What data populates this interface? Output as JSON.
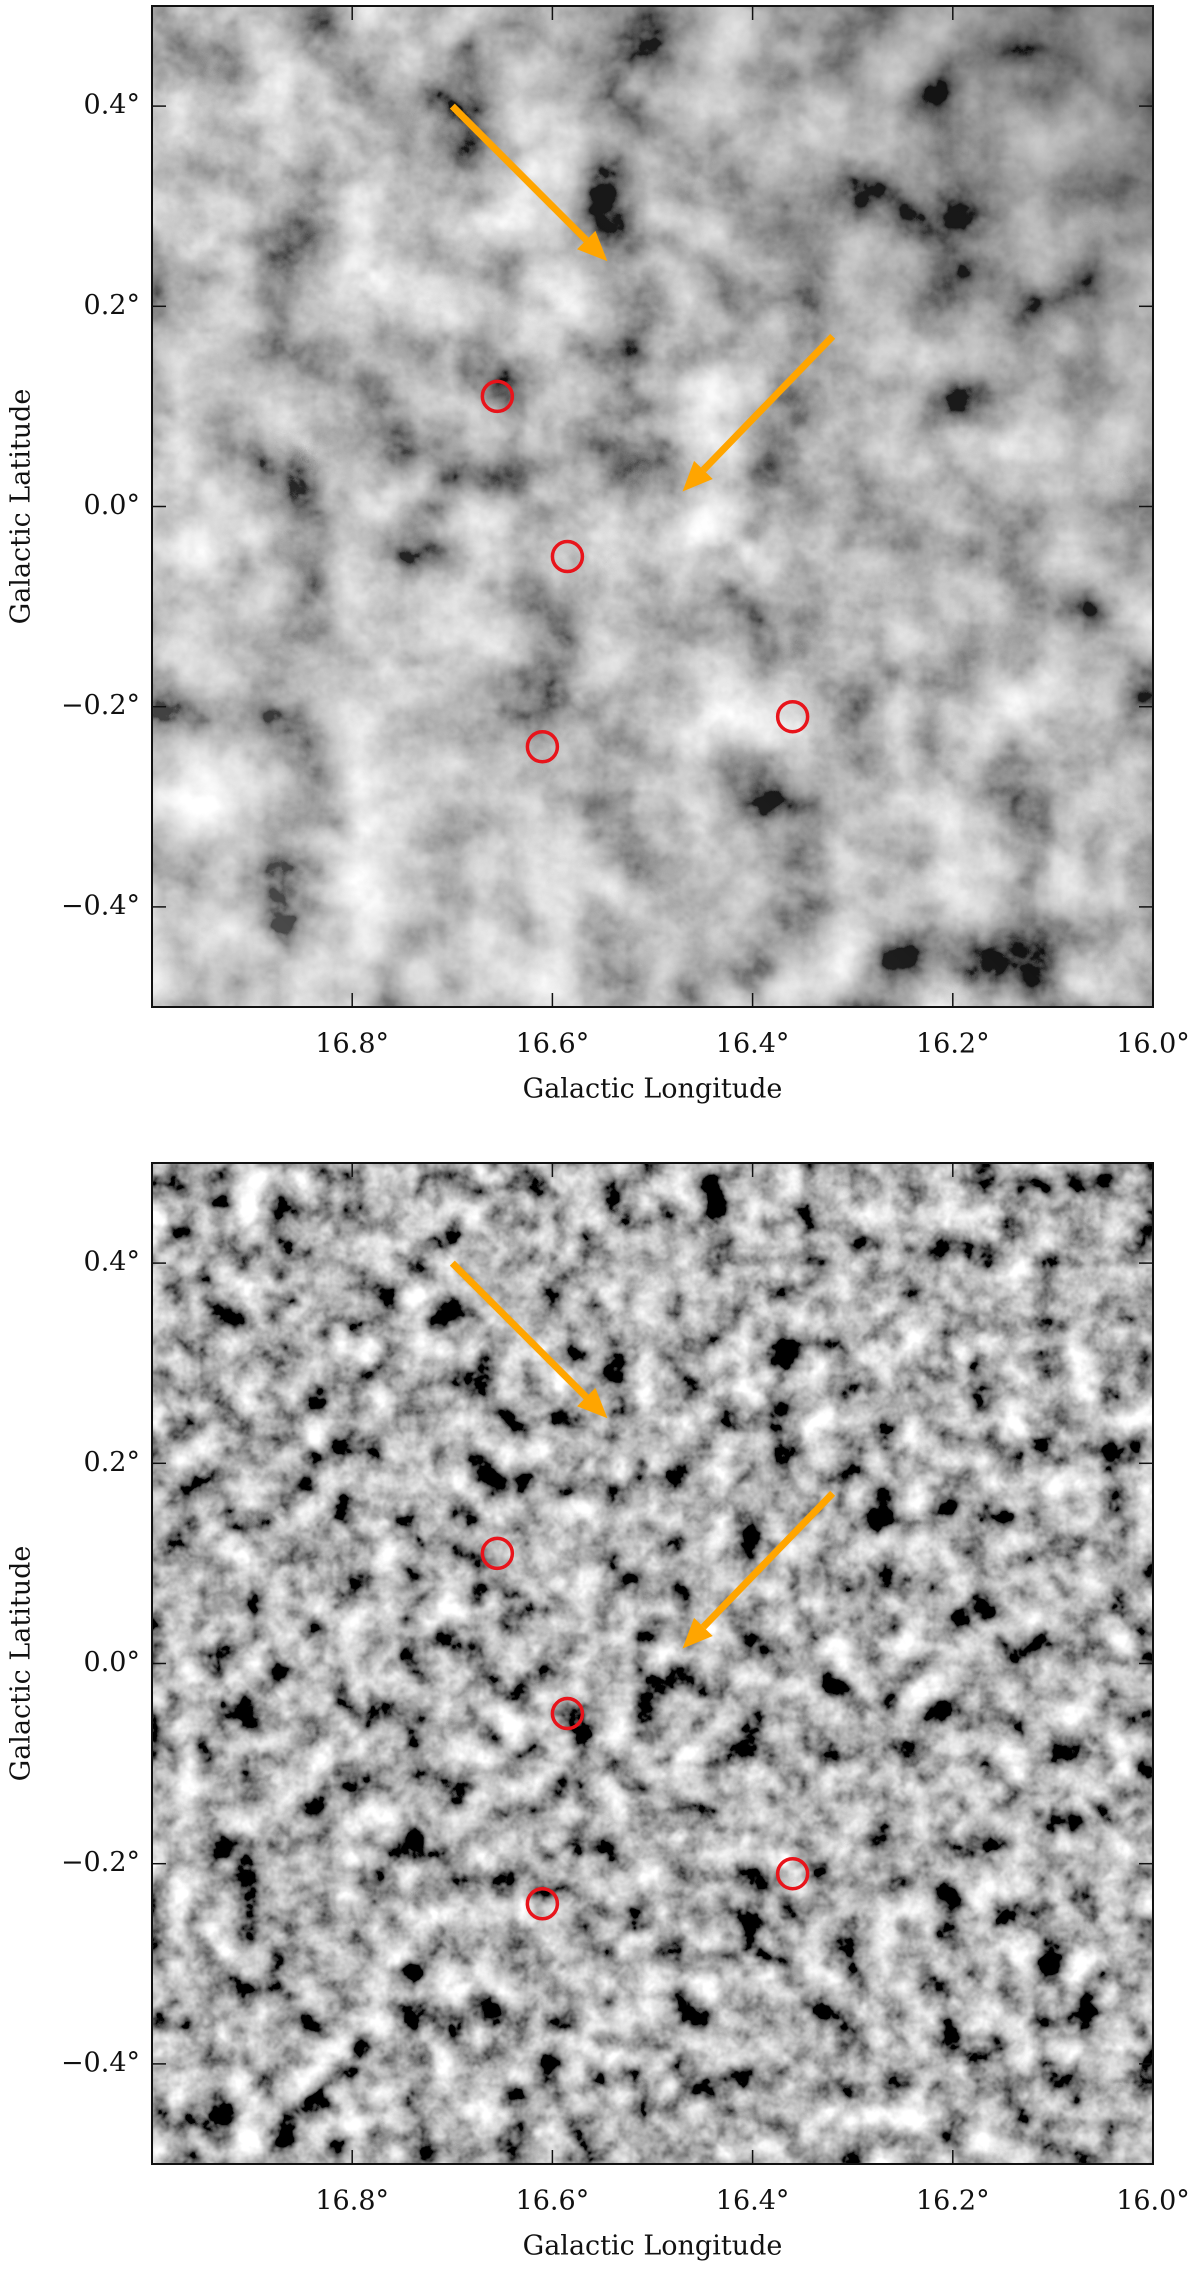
{
  "chart_data": [
    {
      "type": "image",
      "xlabel": "Galactic Longitude",
      "ylabel": "Galactic Latitude",
      "xlim": [
        17.0,
        16.0
      ],
      "ylim": [
        -0.5,
        0.5
      ],
      "xticks": [
        {
          "value": 16.8,
          "label": "16.8°"
        },
        {
          "value": 16.6,
          "label": "16.6°"
        },
        {
          "value": 16.4,
          "label": "16.4°"
        },
        {
          "value": 16.2,
          "label": "16.2°"
        },
        {
          "value": 16.0,
          "label": "16.0°"
        }
      ],
      "yticks": [
        {
          "value": 0.4,
          "label": "0.4°"
        },
        {
          "value": 0.2,
          "label": "0.2°"
        },
        {
          "value": 0.0,
          "label": "0.0°"
        },
        {
          "value": -0.2,
          "label": "−0.2°"
        },
        {
          "value": -0.4,
          "label": "−0.4°"
        }
      ],
      "markers": {
        "color": "#e8141b",
        "x": [
          16.655,
          16.585,
          16.61,
          16.36
        ],
        "y": [
          0.11,
          -0.05,
          -0.24,
          -0.21
        ]
      },
      "arrows": {
        "color": "#ffa500",
        "x0": [
          16.7,
          16.32
        ],
        "y0": [
          0.4,
          0.17
        ],
        "x1": [
          16.545,
          16.47
        ],
        "y1": [
          0.245,
          0.015
        ]
      }
    },
    {
      "type": "image",
      "xlabel": "Galactic Longitude",
      "ylabel": "Galactic Latitude",
      "xlim": [
        17.0,
        16.0
      ],
      "ylim": [
        -0.5,
        0.5
      ],
      "xticks": [
        {
          "value": 16.8,
          "label": "16.8°"
        },
        {
          "value": 16.6,
          "label": "16.6°"
        },
        {
          "value": 16.4,
          "label": "16.4°"
        },
        {
          "value": 16.2,
          "label": "16.2°"
        },
        {
          "value": 16.0,
          "label": "16.0°"
        }
      ],
      "yticks": [
        {
          "value": 0.4,
          "label": "0.4°"
        },
        {
          "value": 0.2,
          "label": "0.2°"
        },
        {
          "value": 0.0,
          "label": "0.0°"
        },
        {
          "value": -0.2,
          "label": "−0.2°"
        },
        {
          "value": -0.4,
          "label": "−0.4°"
        }
      ],
      "markers": {
        "color": "#e8141b",
        "x": [
          16.655,
          16.585,
          16.61,
          16.36
        ],
        "y": [
          0.11,
          -0.05,
          -0.24,
          -0.21
        ]
      },
      "arrows": {
        "color": "#ffa500",
        "x0": [
          16.7,
          16.32
        ],
        "y0": [
          0.4,
          0.17
        ],
        "x1": [
          16.545,
          16.47
        ],
        "y1": [
          0.245,
          0.015
        ]
      }
    }
  ]
}
